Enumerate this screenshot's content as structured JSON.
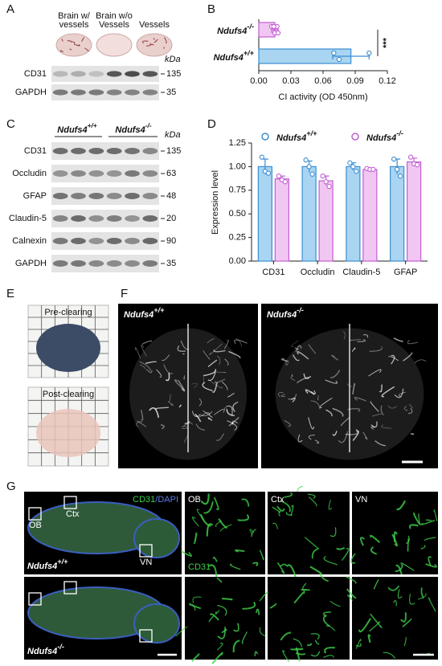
{
  "figure": {
    "panel_labels": [
      "A",
      "B",
      "C",
      "D",
      "E",
      "F",
      "G"
    ],
    "genotypes": [
      {
        "gene": "Ndufs4",
        "sup": "+/+"
      },
      {
        "gene": "Ndufs4",
        "sup": "-/-"
      }
    ],
    "panel_a": {
      "columns": [
        [
          "Brain w/",
          "vessels"
        ],
        [
          "Brain w/o",
          "Vessels"
        ],
        [
          "Vessels"
        ]
      ],
      "unit": "kDa",
      "blots": [
        {
          "label": "CD31",
          "kda": 135
        },
        {
          "label": "GAPDH",
          "kda": 35
        }
      ]
    },
    "panel_c": {
      "unit": "kDa",
      "blots": [
        {
          "label": "CD31",
          "kda": 135
        },
        {
          "label": "Occludin",
          "kda": 63
        },
        {
          "label": "GFAP",
          "kda": 48
        },
        {
          "label": "Claudin-5",
          "kda": 20
        },
        {
          "label": "Calnexin",
          "kda": 90
        },
        {
          "label": "GAPDH",
          "kda": 35
        }
      ]
    },
    "panel_e": {
      "captions": [
        "Pre-clearing",
        "Post-clearing"
      ]
    },
    "panel_g": {
      "stain": [
        "CD31",
        "/DAPI"
      ],
      "regions": [
        "OB",
        "Ctx",
        "VN"
      ],
      "zoom_stain": "CD31"
    }
  },
  "chart_data": [
    {
      "type": "hbar",
      "categories": [
        {
          "gene": "Ndufs4",
          "sup": "-/-"
        },
        {
          "gene": "Ndufs4",
          "sup": "+/+"
        }
      ],
      "values": [
        0.015,
        0.086
      ],
      "errors": [
        0.003,
        0.017
      ],
      "points": [
        [
          0.012,
          0.015,
          0.017,
          0.018,
          0.014
        ],
        [
          0.07,
          0.075,
          0.103
        ]
      ],
      "colors": [
        "#f2c6f2",
        "#a9d5f2"
      ],
      "edge_colors": [
        "#c25fd3",
        "#3b8ed2"
      ],
      "xlim": [
        0,
        0.12
      ],
      "xticks": [
        {
          "value": 0,
          "label": "0.00"
        },
        0.03,
        0.06,
        0.09,
        0.12
      ],
      "xlabel": "CI activity (OD 450nm)",
      "annotation": "***"
    },
    {
      "type": "bar",
      "categories": [
        "CD31",
        "Occludin",
        "Claudin-5",
        "GFAP"
      ],
      "series": [
        {
          "name": {
            "gene": "Ndufs4",
            "sup": "+/+"
          },
          "color": "#a9d5f2",
          "edge_color": "#3b8ed2",
          "values": [
            1,
            1,
            1,
            1
          ],
          "errors": [
            0.08,
            0.06,
            0.04,
            0.08
          ],
          "points": [
            [
              1.1,
              0.95,
              0.93
            ],
            [
              1.07,
              1.0,
              0.92
            ],
            [
              1.04,
              1.0,
              0.95
            ],
            [
              1.08,
              0.97,
              0.9
            ]
          ]
        },
        {
          "name": {
            "gene": "Ndufs4",
            "sup": "-/-"
          },
          "color": "#f2c6f2",
          "edge_color": "#c25fd3",
          "values": [
            0.87,
            0.85,
            0.97,
            1.05
          ],
          "errors": [
            0.03,
            0.05,
            0.01,
            0.04
          ],
          "points": [
            [
              0.9,
              0.86,
              0.84
            ],
            [
              0.9,
              0.84,
              0.79
            ],
            [
              0.98,
              0.97,
              0.97
            ],
            [
              1.1,
              1.03,
              1.02
            ]
          ]
        }
      ],
      "ylim": [
        0,
        1.25
      ],
      "yticks": [
        {
          "value": 0,
          "label": "0.00"
        },
        0.25,
        {
          "value": 0.5,
          "label": "0.50"
        },
        0.75,
        {
          "value": 1,
          "label": "1.00"
        },
        1.25
      ],
      "ylabel": "Expression level",
      "legend": "top"
    }
  ]
}
